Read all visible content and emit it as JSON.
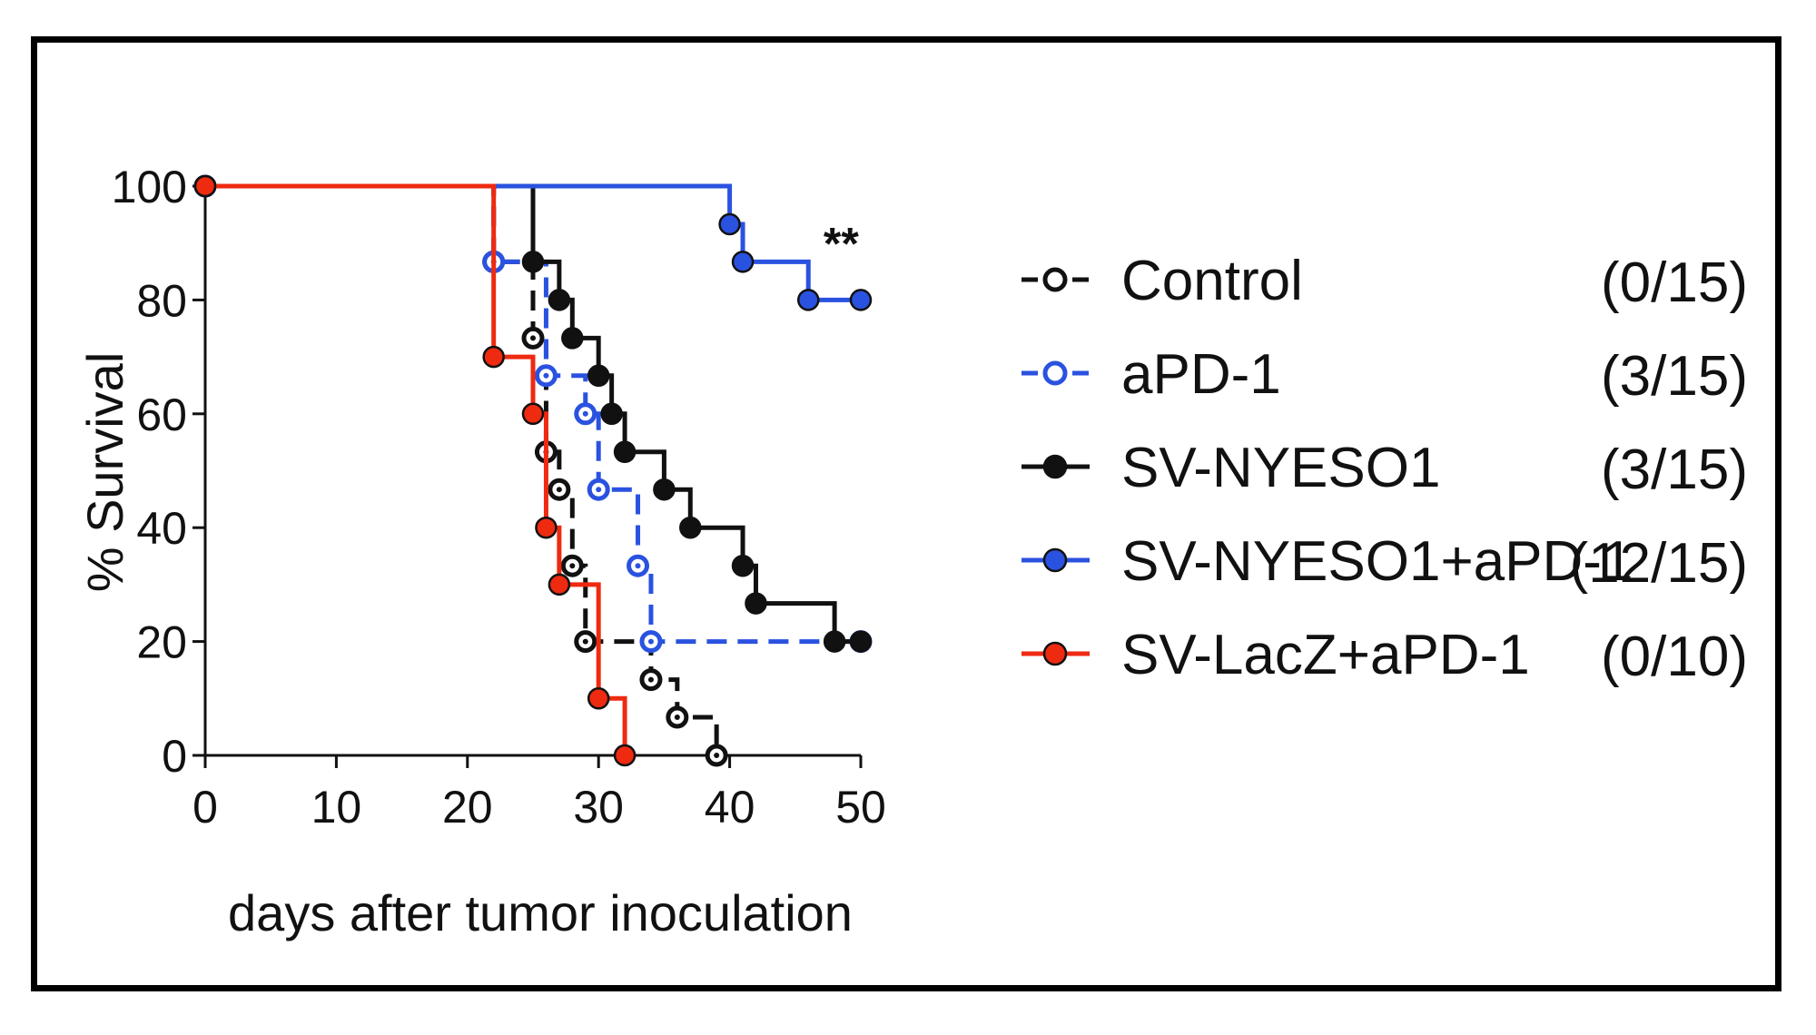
{
  "chart_data": {
    "type": "line",
    "subtype": "kaplan-meier step survival curve",
    "title": "",
    "xlabel": "days after tumor inoculation",
    "ylabel": "% Survival",
    "xlim": [
      0,
      50
    ],
    "ylim": [
      0,
      100
    ],
    "xticks": [
      0,
      10,
      20,
      30,
      40,
      50
    ],
    "yticks": [
      0,
      20,
      40,
      60,
      80,
      100
    ],
    "x_tick_labels": [
      "0",
      "10",
      "20",
      "30",
      "40",
      "50"
    ],
    "y_tick_labels": [
      "0",
      "20",
      "40",
      "60",
      "80",
      "100"
    ],
    "grid": false,
    "legend_position": "right",
    "annotation": {
      "text": "**",
      "x": 48.5,
      "y": 90
    },
    "series": [
      {
        "name": "Control",
        "count": "(0/15)",
        "color": "#111111",
        "dashed": true,
        "marker": "open",
        "points": [
          [
            0,
            100
          ],
          [
            22,
            86.7
          ],
          [
            25,
            73.3
          ],
          [
            26,
            53.3
          ],
          [
            27,
            46.7
          ],
          [
            28,
            33.3
          ],
          [
            29,
            20
          ],
          [
            34,
            13.3
          ],
          [
            36,
            6.7
          ],
          [
            39,
            0
          ]
        ]
      },
      {
        "name": "aPD-1",
        "count": "(3/15)",
        "color": "#2a52e0",
        "dashed": true,
        "marker": "open",
        "points": [
          [
            0,
            100
          ],
          [
            22,
            86.7
          ],
          [
            26,
            66.7
          ],
          [
            29,
            60
          ],
          [
            30,
            46.7
          ],
          [
            33,
            33.3
          ],
          [
            34,
            20
          ],
          [
            50,
            20
          ]
        ]
      },
      {
        "name": "SV-NYESO1",
        "count": "(3/15)",
        "color": "#111111",
        "dashed": false,
        "marker": "filled",
        "points": [
          [
            0,
            100
          ],
          [
            25,
            86.7
          ],
          [
            27,
            80
          ],
          [
            28,
            73.3
          ],
          [
            30,
            66.7
          ],
          [
            31,
            60
          ],
          [
            32,
            53.3
          ],
          [
            35,
            46.7
          ],
          [
            37,
            40
          ],
          [
            41,
            33.3
          ],
          [
            42,
            26.7
          ],
          [
            48,
            20
          ],
          [
            50,
            20
          ]
        ]
      },
      {
        "name": "SV-NYESO1+aPD-1",
        "count": "(12/15)",
        "color": "#2a52e0",
        "dashed": false,
        "marker": "filled",
        "points": [
          [
            0,
            100
          ],
          [
            40,
            93.3
          ],
          [
            41,
            86.7
          ],
          [
            46,
            80
          ],
          [
            50,
            80
          ]
        ]
      },
      {
        "name": "SV-LacZ+aPD-1",
        "count": "(0/10)",
        "color": "#ee2a10",
        "dashed": false,
        "marker": "filled",
        "points": [
          [
            0,
            100
          ],
          [
            22,
            70
          ],
          [
            25,
            60
          ],
          [
            26,
            40
          ],
          [
            27,
            30
          ],
          [
            30,
            10
          ],
          [
            32,
            0
          ]
        ]
      }
    ]
  }
}
